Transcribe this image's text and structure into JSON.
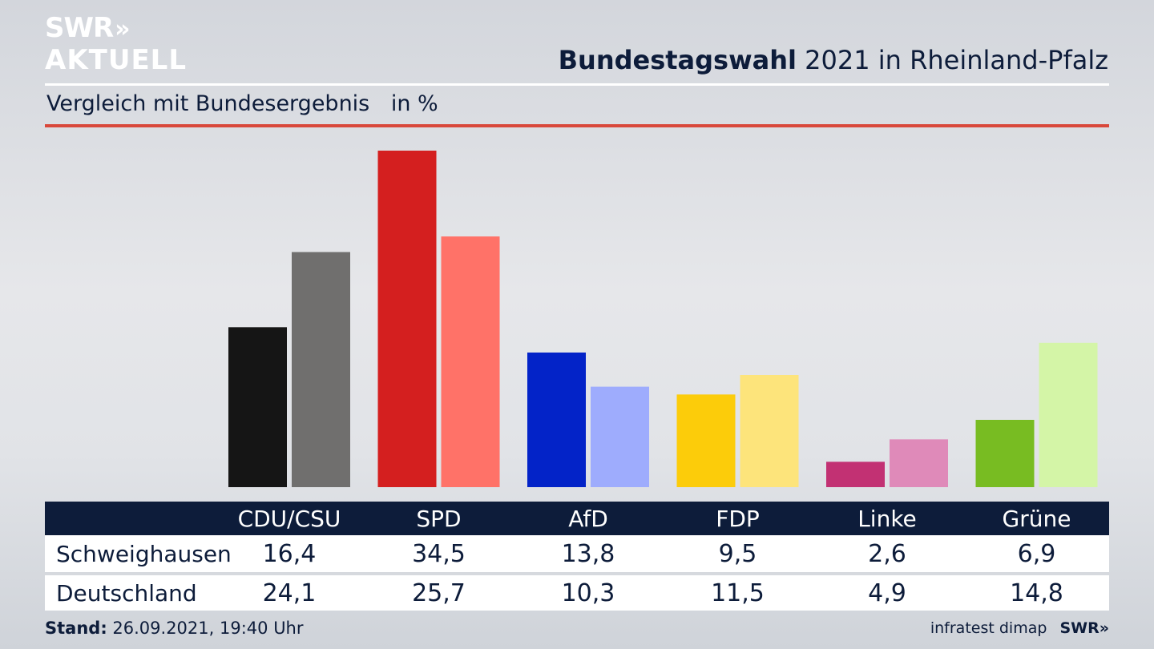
{
  "logo": {
    "line1": "SWR",
    "chevrons": "»",
    "line2": "AKTUELL"
  },
  "header": {
    "title_bold": "Bundestagswahl",
    "title_rest": "2021 in Rheinland-Pfalz"
  },
  "subtitle": {
    "text": "Vergleich mit Bundesergebnis",
    "unit": "in %"
  },
  "colors": {
    "navy": "#0d1c3a",
    "accent_red_rule": "#d9483b"
  },
  "chart_data": {
    "type": "bar",
    "categories": [
      "CDU/CSU",
      "SPD",
      "AfD",
      "FDP",
      "Linke",
      "Grüne"
    ],
    "series": [
      {
        "name": "Schweighausen",
        "values": [
          16.4,
          34.5,
          13.8,
          9.5,
          2.6,
          6.9
        ],
        "colors": [
          "#151515",
          "#d41f1f",
          "#0323c8",
          "#fccc0a",
          "#c23173",
          "#78bc22"
        ]
      },
      {
        "name": "Deutschland",
        "values": [
          24.1,
          25.7,
          10.3,
          11.5,
          4.9,
          14.8
        ],
        "colors": [
          "#706f6e",
          "#ff7268",
          "#9eacfd",
          "#fde47b",
          "#df8ab9",
          "#d4f5a7"
        ]
      }
    ],
    "ylim": [
      0,
      34.5
    ],
    "grid": false,
    "legend": "table below chart"
  },
  "table": {
    "rows": [
      {
        "label": "Schweighausen",
        "values": [
          "16,4",
          "34,5",
          "13,8",
          "9,5",
          "2,6",
          "6,9"
        ]
      },
      {
        "label": "Deutschland",
        "values": [
          "24,1",
          "25,7",
          "10,3",
          "11,5",
          "4,9",
          "14,8"
        ]
      }
    ]
  },
  "footer": {
    "stand_label": "Stand:",
    "stand_value": "26.09.2021, 19:40 Uhr",
    "source": "infratest dimap",
    "brand": "SWR»"
  }
}
